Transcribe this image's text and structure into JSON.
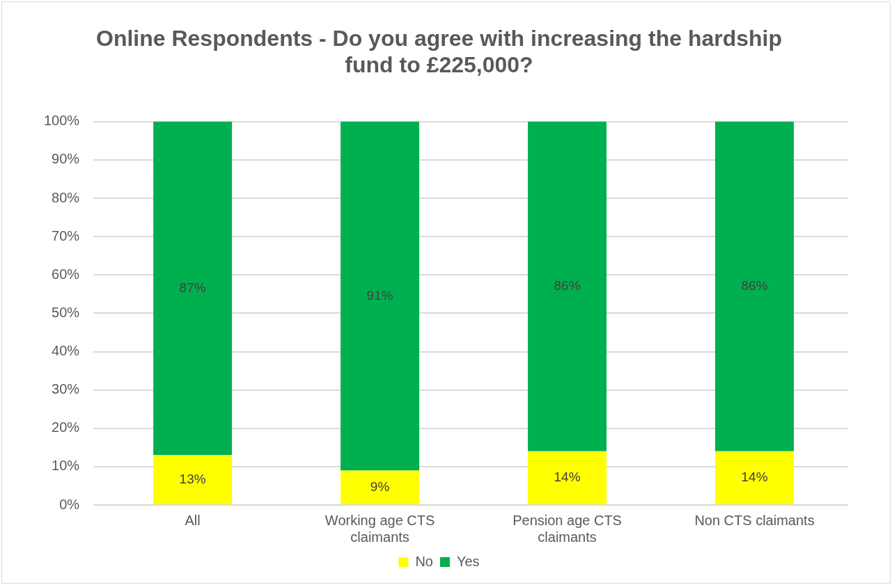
{
  "chart_data": {
    "type": "bar",
    "title": "Online Respondents - Do you agree with increasing the hardship fund to £225,000?",
    "categories": [
      "All",
      "Working age CTS claimants",
      "Pension age CTS claimants",
      "Non CTS claimants"
    ],
    "stacked": true,
    "series": [
      {
        "name": "No",
        "color": "#ffff00",
        "values": [
          13,
          9,
          14,
          14
        ],
        "value_labels": [
          "13%",
          "9%",
          "14%",
          "14%"
        ]
      },
      {
        "name": "Yes",
        "color": "#00b050",
        "values": [
          87,
          91,
          86,
          86
        ],
        "value_labels": [
          "87%",
          "91%",
          "86%",
          "86%"
        ]
      }
    ],
    "ylim": [
      0,
      100
    ],
    "yticks": [
      {
        "value": 0,
        "label": "0%"
      },
      {
        "value": 10,
        "label": "10%"
      },
      {
        "value": 20,
        "label": "20%"
      },
      {
        "value": 30,
        "label": "30%"
      },
      {
        "value": 40,
        "label": "40%"
      },
      {
        "value": 50,
        "label": "50%"
      },
      {
        "value": 60,
        "label": "60%"
      },
      {
        "value": 70,
        "label": "70%"
      },
      {
        "value": 80,
        "label": "80%"
      },
      {
        "value": 90,
        "label": "90%"
      },
      {
        "value": 100,
        "label": "100%"
      }
    ],
    "grid": "y",
    "legend": "bottom"
  }
}
